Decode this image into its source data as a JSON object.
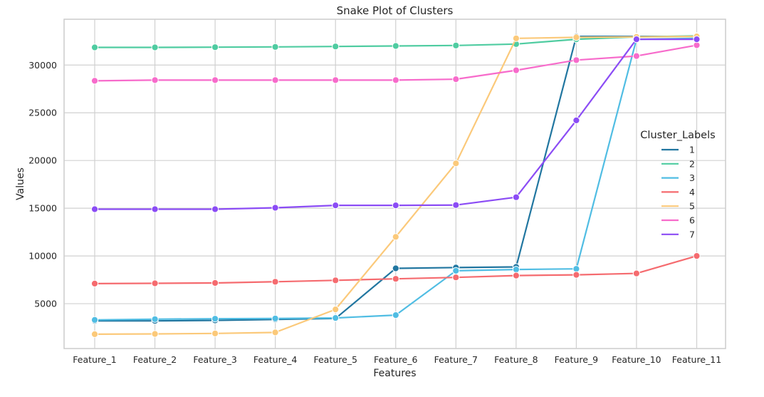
{
  "chart_data": {
    "type": "line",
    "title": "Snake Plot of Clusters",
    "xlabel": "Features",
    "ylabel": "Values",
    "categories": [
      "Feature_1",
      "Feature_2",
      "Feature_3",
      "Feature_4",
      "Feature_5",
      "Feature_6",
      "Feature_7",
      "Feature_8",
      "Feature_9",
      "Feature_10",
      "Feature_11"
    ],
    "y_ticks": [
      5000,
      10000,
      15000,
      20000,
      25000,
      30000
    ],
    "ylim": [
      300,
      34800
    ],
    "grid": true,
    "markers": true,
    "legend": {
      "title": "Cluster_Labels",
      "position": "right"
    },
    "series": [
      {
        "name": "1",
        "color": "#2176a0",
        "values": [
          3200,
          3200,
          3250,
          3350,
          3450,
          8700,
          8780,
          8850,
          33000,
          33000,
          33000
        ]
      },
      {
        "name": "2",
        "color": "#4fcca1",
        "values": [
          31850,
          31850,
          31870,
          31900,
          31950,
          32000,
          32050,
          32200,
          32700,
          32950,
          33050
        ]
      },
      {
        "name": "3",
        "color": "#50bde3",
        "values": [
          3300,
          3380,
          3420,
          3450,
          3500,
          3800,
          8450,
          8580,
          8650,
          32700,
          32800
        ]
      },
      {
        "name": "4",
        "color": "#f56b6f",
        "values": [
          7100,
          7130,
          7170,
          7300,
          7450,
          7600,
          7750,
          7950,
          8020,
          8170,
          10000
        ]
      },
      {
        "name": "5",
        "color": "#fbc97a",
        "values": [
          1800,
          1830,
          1880,
          1990,
          4400,
          12000,
          19700,
          32800,
          32900,
          32950,
          33000
        ]
      },
      {
        "name": "6",
        "color": "#f76bcb",
        "values": [
          28350,
          28420,
          28420,
          28420,
          28420,
          28420,
          28520,
          29450,
          30520,
          30950,
          32080
        ]
      },
      {
        "name": "7",
        "color": "#8b4cf5",
        "values": [
          14900,
          14900,
          14900,
          15050,
          15300,
          15300,
          15330,
          16150,
          24200,
          32700,
          32700
        ]
      }
    ]
  }
}
